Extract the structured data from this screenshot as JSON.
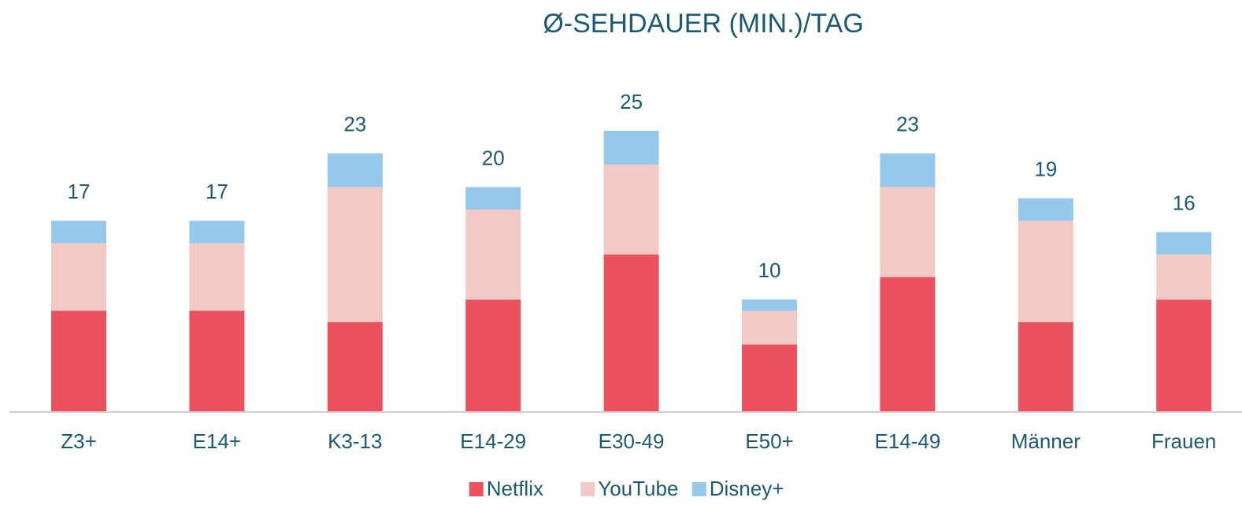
{
  "chart_data": {
    "type": "stacked_bar",
    "title": "Ø-SEHDAUER (MIN.)/TAG",
    "categories": [
      "Z3+",
      "E14+",
      "K3-13",
      "E14-29",
      "E30-49",
      "E50+",
      "E14-49",
      "Männer",
      "Frauen"
    ],
    "series": [
      {
        "name": "Netflix",
        "color": "#eb525d",
        "values": [
          9,
          9,
          8,
          10,
          14,
          6,
          12,
          8,
          10
        ]
      },
      {
        "name": "YouTube",
        "color": "#f3c9c5",
        "values": [
          6,
          6,
          12,
          8,
          8,
          3,
          8,
          9,
          4
        ]
      },
      {
        "name": "Disney+",
        "color": "#95c8ea",
        "values": [
          2,
          2,
          3,
          2,
          3,
          1,
          3,
          2,
          2
        ]
      }
    ],
    "totals": [
      17,
      17,
      23,
      20,
      25,
      10,
      23,
      19,
      16
    ],
    "legend": "bottom"
  }
}
